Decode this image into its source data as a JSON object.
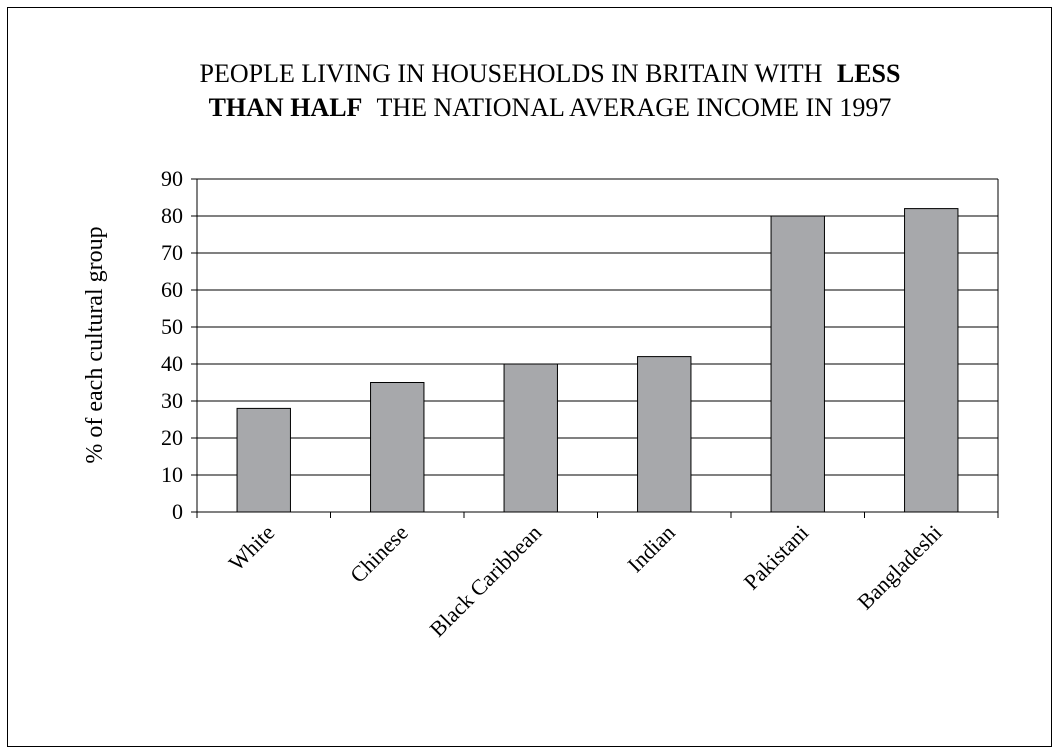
{
  "chart_data": {
    "type": "bar",
    "title": {
      "line1_before": "PEOPLE LIVING IN HOUSEHOLDS IN BRITAIN WITH",
      "line1_bold": "LESS",
      "line2_bold": "THAN HALF",
      "line2_after": "THE NATIONAL AVERAGE INCOME IN 1997"
    },
    "xlabel": "",
    "ylabel": "% of each cultural group",
    "categories": [
      "White",
      "Chinese",
      "Black Caribbean",
      "Indian",
      "Pakistani",
      "Bangladeshi"
    ],
    "values": [
      28,
      35,
      40,
      42,
      80,
      82
    ],
    "ylim": [
      0,
      90
    ],
    "yticks": [
      "0",
      "10",
      "20",
      "30",
      "40",
      "50",
      "60",
      "70",
      "80",
      "90"
    ],
    "grid": true,
    "legend": "none",
    "colors": {
      "bar_fill": "#a7a8ab",
      "bar_stroke": "#000000",
      "grid": "#000000"
    }
  }
}
